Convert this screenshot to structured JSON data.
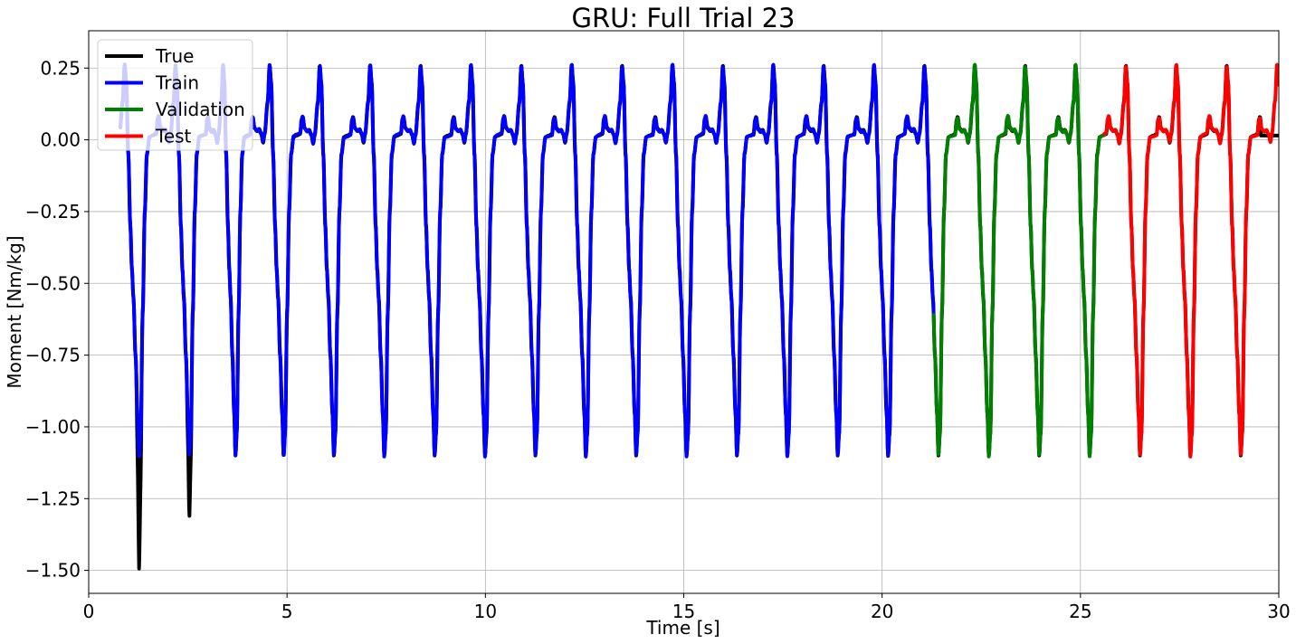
{
  "chart_data": {
    "type": "line",
    "title": "GRU: Full Trial 23",
    "xlabel": "Time [s]",
    "ylabel": "Moment [Nm/kg]",
    "xlim": [
      0,
      30
    ],
    "ylim": [
      -1.58,
      0.38
    ],
    "xticks": [
      0,
      5,
      10,
      15,
      20,
      25,
      30
    ],
    "xtick_labels": [
      "0",
      "5",
      "10",
      "15",
      "20",
      "25",
      "30"
    ],
    "yticks": [
      0.25,
      0.0,
      -0.25,
      -0.5,
      -0.75,
      -1.0,
      -1.25,
      -1.5
    ],
    "ytick_labels": [
      "0.25",
      "0.00",
      "−0.25",
      "−0.50",
      "−0.75",
      "−1.00",
      "−1.25",
      "−1.50"
    ],
    "grid": true,
    "legend_position": "upper-left",
    "colors": {
      "True": "#000000",
      "Train": "#0000ff",
      "Validation": "#008000",
      "Test": "#ff0000"
    },
    "gait_cycle": {
      "period_s": 1.27,
      "heel_strike_times_s": [
        0.4,
        1.7,
        2.95,
        4.07,
        5.33,
        6.6,
        7.87,
        9.14,
        10.41,
        11.68,
        12.95,
        14.22,
        15.49,
        16.76,
        18.03,
        19.3,
        20.57,
        21.84,
        23.11,
        24.38,
        25.65,
        26.92,
        28.19,
        29.46
      ],
      "swing_peak_moment": 0.26,
      "stance_bump_moment": 0.08,
      "min_moment": -1.1,
      "true_min_first_cycles": [
        -1.5,
        -1.32
      ]
    },
    "series": [
      {
        "name": "True",
        "x_range": [
          0.8,
          30.0
        ]
      },
      {
        "name": "Train",
        "x_range": [
          0.8,
          21.3
        ]
      },
      {
        "name": "Validation",
        "x_range": [
          21.3,
          25.6
        ]
      },
      {
        "name": "Test",
        "x_range": [
          25.6,
          30.0
        ]
      }
    ]
  }
}
